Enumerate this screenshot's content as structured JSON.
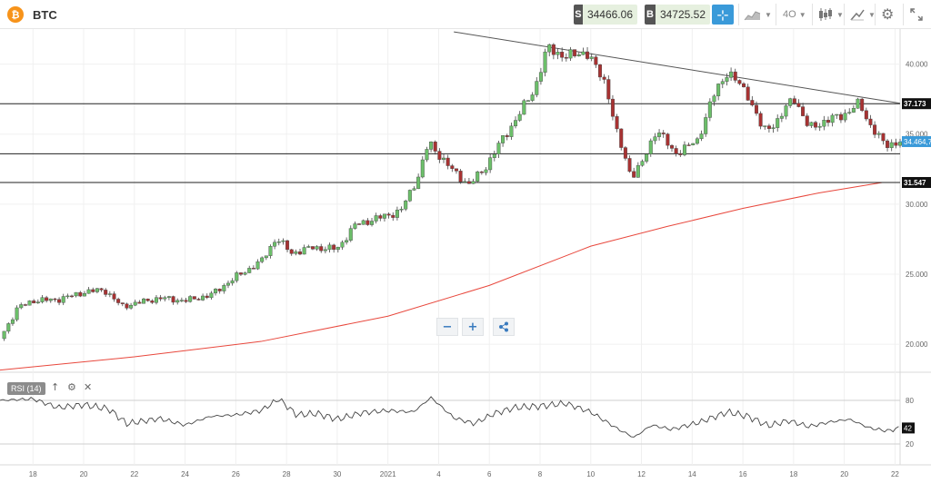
{
  "header": {
    "symbol": "BTC",
    "logo_glyph": "₿",
    "sell_tag": "S",
    "sell_price": "34466.06",
    "buy_tag": "B",
    "buy_price": "34725.52",
    "timeframe": "4O",
    "icons": [
      "bitcoin-logo-icon",
      "crosshair-icon",
      "area-chart-icon",
      "candlestick-icon",
      "drawing-tools-icon",
      "gear-icon",
      "fullscreen-icon"
    ]
  },
  "controls": {
    "zoom_out": "−",
    "zoom_in": "+",
    "share_icon": "share-icon"
  },
  "rsi": {
    "label": "RSI (14)",
    "up_icon": "arrow-up-icon",
    "settings_icon": "gear-icon",
    "close_icon": "close-icon"
  },
  "colors": {
    "up": "#6cbf6a",
    "down": "#a83232",
    "ma": "#e8473c",
    "trendline": "#555555",
    "current_price": "#3a9ad9",
    "level": "#222222"
  },
  "chart_data": {
    "type": "candlestick",
    "instrument": "BTC",
    "y_axis_ticks": [
      "40.000",
      "35.000",
      "30.000",
      "25.000",
      "20.000"
    ],
    "y_tick_values": [
      40000,
      35000,
      30000,
      25000,
      20000
    ],
    "ylim": [
      18000,
      42500
    ],
    "x_axis_ticks": [
      "18",
      "20",
      "22",
      "24",
      "26",
      "28",
      "30",
      "2021",
      "4",
      "6",
      "8",
      "10",
      "12",
      "14",
      "16",
      "18",
      "20",
      "22"
    ],
    "x_tick_days": [
      -14,
      -12,
      -10,
      -8,
      -6,
      -4,
      -2,
      0,
      2,
      4,
      6,
      8,
      10,
      12,
      14,
      16,
      18,
      20
    ],
    "xlim": [
      -15.3,
      20.2
    ],
    "horizontal_levels": [
      {
        "label": "37.173",
        "value": 37173
      },
      {
        "label": "31.547",
        "value": 31547
      }
    ],
    "support_line_value": 33600,
    "current_price": {
      "label": "34.464,7",
      "value": 34464.7
    },
    "trendline": [
      {
        "day": 2.6,
        "price": 42300
      },
      {
        "day": 20.2,
        "price": 37200
      }
    ],
    "moving_average": [
      {
        "day": -15.3,
        "price": 18150
      },
      {
        "day": -10,
        "price": 19100
      },
      {
        "day": -5,
        "price": 20200
      },
      {
        "day": 0,
        "price": 22000
      },
      {
        "day": 4,
        "price": 24200
      },
      {
        "day": 8,
        "price": 27000
      },
      {
        "day": 11,
        "price": 28400
      },
      {
        "day": 14,
        "price": 29700
      },
      {
        "day": 17,
        "price": 30800
      },
      {
        "day": 19.5,
        "price": 31547
      }
    ],
    "close_path": [
      {
        "day": -15.3,
        "price": 20400
      },
      {
        "day": -14.6,
        "price": 22600
      },
      {
        "day": -14,
        "price": 23100
      },
      {
        "day": -13,
        "price": 23200
      },
      {
        "day": -12,
        "price": 23700
      },
      {
        "day": -11.2,
        "price": 23900
      },
      {
        "day": -10.5,
        "price": 22700
      },
      {
        "day": -10,
        "price": 22900
      },
      {
        "day": -9,
        "price": 23300
      },
      {
        "day": -8,
        "price": 23100
      },
      {
        "day": -7,
        "price": 23500
      },
      {
        "day": -6,
        "price": 24800
      },
      {
        "day": -5,
        "price": 25900
      },
      {
        "day": -4.4,
        "price": 27600
      },
      {
        "day": -3.8,
        "price": 26500
      },
      {
        "day": -3,
        "price": 26900
      },
      {
        "day": -2,
        "price": 26800
      },
      {
        "day": -1.3,
        "price": 28500
      },
      {
        "day": -0.4,
        "price": 29000
      },
      {
        "day": 0.5,
        "price": 29500
      },
      {
        "day": 1.2,
        "price": 32000
      },
      {
        "day": 1.6,
        "price": 34400
      },
      {
        "day": 2.6,
        "price": 32300
      },
      {
        "day": 3.2,
        "price": 31400
      },
      {
        "day": 3.8,
        "price": 32500
      },
      {
        "day": 4.4,
        "price": 34300
      },
      {
        "day": 5.1,
        "price": 36200
      },
      {
        "day": 5.8,
        "price": 38300
      },
      {
        "day": 6.3,
        "price": 41200
      },
      {
        "day": 7.0,
        "price": 40500
      },
      {
        "day": 7.8,
        "price": 40900
      },
      {
        "day": 8.6,
        "price": 38600
      },
      {
        "day": 9.0,
        "price": 35200
      },
      {
        "day": 9.6,
        "price": 32000
      },
      {
        "day": 10.0,
        "price": 32800
      },
      {
        "day": 10.6,
        "price": 35400
      },
      {
        "day": 11.3,
        "price": 33600
      },
      {
        "day": 12.2,
        "price": 34500
      },
      {
        "day": 12.8,
        "price": 37600
      },
      {
        "day": 13.4,
        "price": 39500
      },
      {
        "day": 14.2,
        "price": 37800
      },
      {
        "day": 14.8,
        "price": 35200
      },
      {
        "day": 15.4,
        "price": 36000
      },
      {
        "day": 16.0,
        "price": 37700
      },
      {
        "day": 16.6,
        "price": 35400
      },
      {
        "day": 17.2,
        "price": 35900
      },
      {
        "day": 18.0,
        "price": 36400
      },
      {
        "day": 18.6,
        "price": 37200
      },
      {
        "day": 19.0,
        "price": 35700
      },
      {
        "day": 19.6,
        "price": 34200
      },
      {
        "day": 20.2,
        "price": 34465
      }
    ],
    "rsi": {
      "levels": [
        80,
        20
      ],
      "tick_labels": [
        "80",
        "20"
      ],
      "current_label": "42",
      "current_value": 42,
      "range": [
        0,
        100
      ],
      "path": [
        {
          "day": -15.3,
          "price": 80
        },
        {
          "day": -14,
          "price": 82
        },
        {
          "day": -13,
          "price": 70
        },
        {
          "day": -12,
          "price": 74
        },
        {
          "day": -11,
          "price": 68
        },
        {
          "day": -10.3,
          "price": 48
        },
        {
          "day": -9,
          "price": 55
        },
        {
          "day": -8,
          "price": 46
        },
        {
          "day": -7,
          "price": 58
        },
        {
          "day": -6,
          "price": 60
        },
        {
          "day": -5,
          "price": 66
        },
        {
          "day": -4.3,
          "price": 82
        },
        {
          "day": -3.6,
          "price": 60
        },
        {
          "day": -2.8,
          "price": 62
        },
        {
          "day": -2,
          "price": 54
        },
        {
          "day": -1,
          "price": 63
        },
        {
          "day": 0,
          "price": 66
        },
        {
          "day": 1,
          "price": 64
        },
        {
          "day": 1.7,
          "price": 84
        },
        {
          "day": 2.6,
          "price": 56
        },
        {
          "day": 3.4,
          "price": 48
        },
        {
          "day": 4.2,
          "price": 62
        },
        {
          "day": 5,
          "price": 70
        },
        {
          "day": 6,
          "price": 72
        },
        {
          "day": 7,
          "price": 76
        },
        {
          "day": 8,
          "price": 64
        },
        {
          "day": 9.1,
          "price": 40
        },
        {
          "day": 9.7,
          "price": 29
        },
        {
          "day": 10.4,
          "price": 46
        },
        {
          "day": 11.2,
          "price": 40
        },
        {
          "day": 12.3,
          "price": 50
        },
        {
          "day": 13.4,
          "price": 64
        },
        {
          "day": 14.2,
          "price": 58
        },
        {
          "day": 15,
          "price": 45
        },
        {
          "day": 15.8,
          "price": 52
        },
        {
          "day": 16.6,
          "price": 44
        },
        {
          "day": 17.4,
          "price": 50
        },
        {
          "day": 18.2,
          "price": 54
        },
        {
          "day": 19.0,
          "price": 42
        },
        {
          "day": 19.7,
          "price": 38
        },
        {
          "day": 20.2,
          "price": 42
        }
      ]
    }
  }
}
